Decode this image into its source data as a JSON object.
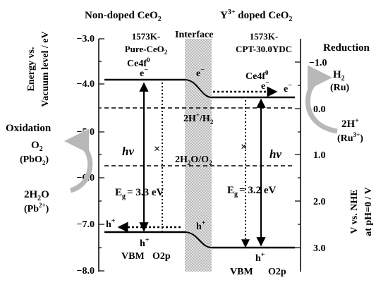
{
  "labels": {
    "left_title": "Non-doped CeO",
    "left_title_sub": "2",
    "right_title_sup": "3+",
    "right_title_y": "Y",
    "right_title_rest": " doped CeO",
    "right_title_sub": "2",
    "left_sample_line1": "1573K-",
    "left_sample_line2": "Pure-CeO",
    "left_sample_line2_sub": "2",
    "right_sample_line1": "1573K-",
    "right_sample_line2": "CPT-30.0YDC",
    "interface": "Interface",
    "left_axis_line1": "Energy vs.",
    "left_axis_line2": "Vacuum level / eV",
    "right_axis_line1": "V vs. NHE",
    "right_axis_line2": "at pH=0 / V",
    "reduction": "Reduction",
    "oxidation": "Oxidation",
    "ce4f_left": "Ce4f",
    "ce4f_left_sup": "0",
    "ce4f_right": "Ce4f",
    "ce4f_right_sup": "0",
    "electron": "e",
    "electron_sup": "−",
    "hole": "h",
    "hole_sup": "+",
    "h2_pair": "2H",
    "h2_pair_sup": "+",
    "h2_pair_rest": "/H",
    "h2_pair_sub": "2",
    "o2_pair": "2H",
    "o2_pair_sub": "2",
    "o2_pair_rest": "O/O",
    "o2_pair_sub2": "2",
    "hv": "hν",
    "eg_left_pre": "E",
    "eg_left_sub": "g",
    "eg_left_val": "= 3.3 eV",
    "eg_right_pre": "E",
    "eg_right_sub": "g",
    "eg_right_val": "= 3.2 eV",
    "vbm_left": "VBM",
    "o2p_left": "O2p",
    "vbm_right": "VBM",
    "o2p_right": "O2p",
    "cross": "×",
    "h2_product": "H",
    "h2_product_sub": "2",
    "ru": "(Ru)",
    "twoH_plus": "2H",
    "twoH_plus_sup": "+",
    "ru3": "(Ru",
    "ru3_sup": "3+",
    "ru3_close": ")",
    "o2_product": "O",
    "o2_product_sub": "2",
    "pbo2": "(PbO",
    "pbo2_sub": "2",
    "pbo2_close": ")",
    "two_h2o": "2H",
    "two_h2o_sub": "2",
    "two_h2o_rest": "O",
    "pb2": "(Pb",
    "pb2_sup": "2+",
    "pb2_close": ")"
  },
  "left_axis_ticks": [
    "−3.0",
    "−4.0",
    "−5.0",
    "−6.0",
    "−7.0",
    "−8.0"
  ],
  "right_axis_ticks": [
    "−1.0",
    "0.0",
    "1.0",
    "2.0",
    "3.0"
  ],
  "colors": {
    "line": "#000000",
    "interface_fill": "#d0d0d0",
    "reaction_arrow": "#b8b8b8"
  }
}
